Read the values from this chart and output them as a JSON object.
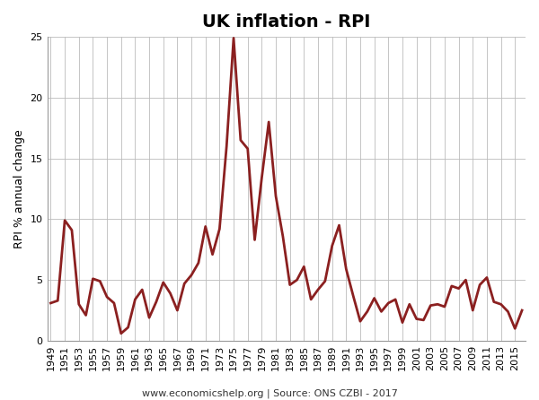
{
  "title": "UK inflation - RPI",
  "ylabel": "RPI % annual change",
  "footer": "www.economicshelp.org | Source: ONS CZBI - 2017",
  "line_color": "#8B2020",
  "background_color": "#ffffff",
  "grid_color": "#bbbbbb",
  "years": [
    1949,
    1950,
    1951,
    1952,
    1953,
    1954,
    1955,
    1956,
    1957,
    1958,
    1959,
    1960,
    1961,
    1962,
    1963,
    1964,
    1965,
    1966,
    1967,
    1968,
    1969,
    1970,
    1971,
    1972,
    1973,
    1974,
    1975,
    1976,
    1977,
    1978,
    1979,
    1980,
    1981,
    1982,
    1983,
    1984,
    1985,
    1986,
    1987,
    1988,
    1989,
    1990,
    1991,
    1992,
    1993,
    1994,
    1995,
    1996,
    1997,
    1998,
    1999,
    2000,
    2001,
    2002,
    2003,
    2004,
    2005,
    2006,
    2007,
    2008,
    2009,
    2010,
    2011,
    2012,
    2013,
    2014,
    2015,
    2016
  ],
  "values": [
    3.1,
    3.3,
    9.9,
    9.1,
    3.0,
    2.1,
    5.1,
    4.9,
    3.6,
    3.1,
    0.6,
    1.1,
    3.4,
    4.2,
    1.9,
    3.2,
    4.8,
    3.9,
    2.5,
    4.7,
    5.4,
    6.4,
    9.4,
    7.1,
    9.2,
    16.0,
    24.9,
    16.5,
    15.8,
    8.3,
    13.4,
    18.0,
    11.9,
    8.6,
    4.6,
    5.0,
    6.1,
    3.4,
    4.2,
    4.9,
    7.8,
    9.5,
    5.9,
    3.7,
    1.6,
    2.4,
    3.5,
    2.4,
    3.1,
    3.4,
    1.5,
    3.0,
    1.8,
    1.7,
    2.9,
    3.0,
    2.8,
    4.5,
    4.3,
    5.0,
    2.5,
    4.6,
    5.2,
    3.2,
    3.0,
    2.4,
    1.0,
    2.5
  ],
  "ylim": [
    0,
    25
  ],
  "yticks": [
    0,
    5,
    10,
    15,
    20,
    25
  ],
  "xtick_start": 1949,
  "xtick_end": 2016,
  "xtick_step": 2,
  "linewidth": 2.0,
  "title_fontsize": 14,
  "axis_label_fontsize": 9,
  "tick_fontsize": 8,
  "footer_fontsize": 8
}
